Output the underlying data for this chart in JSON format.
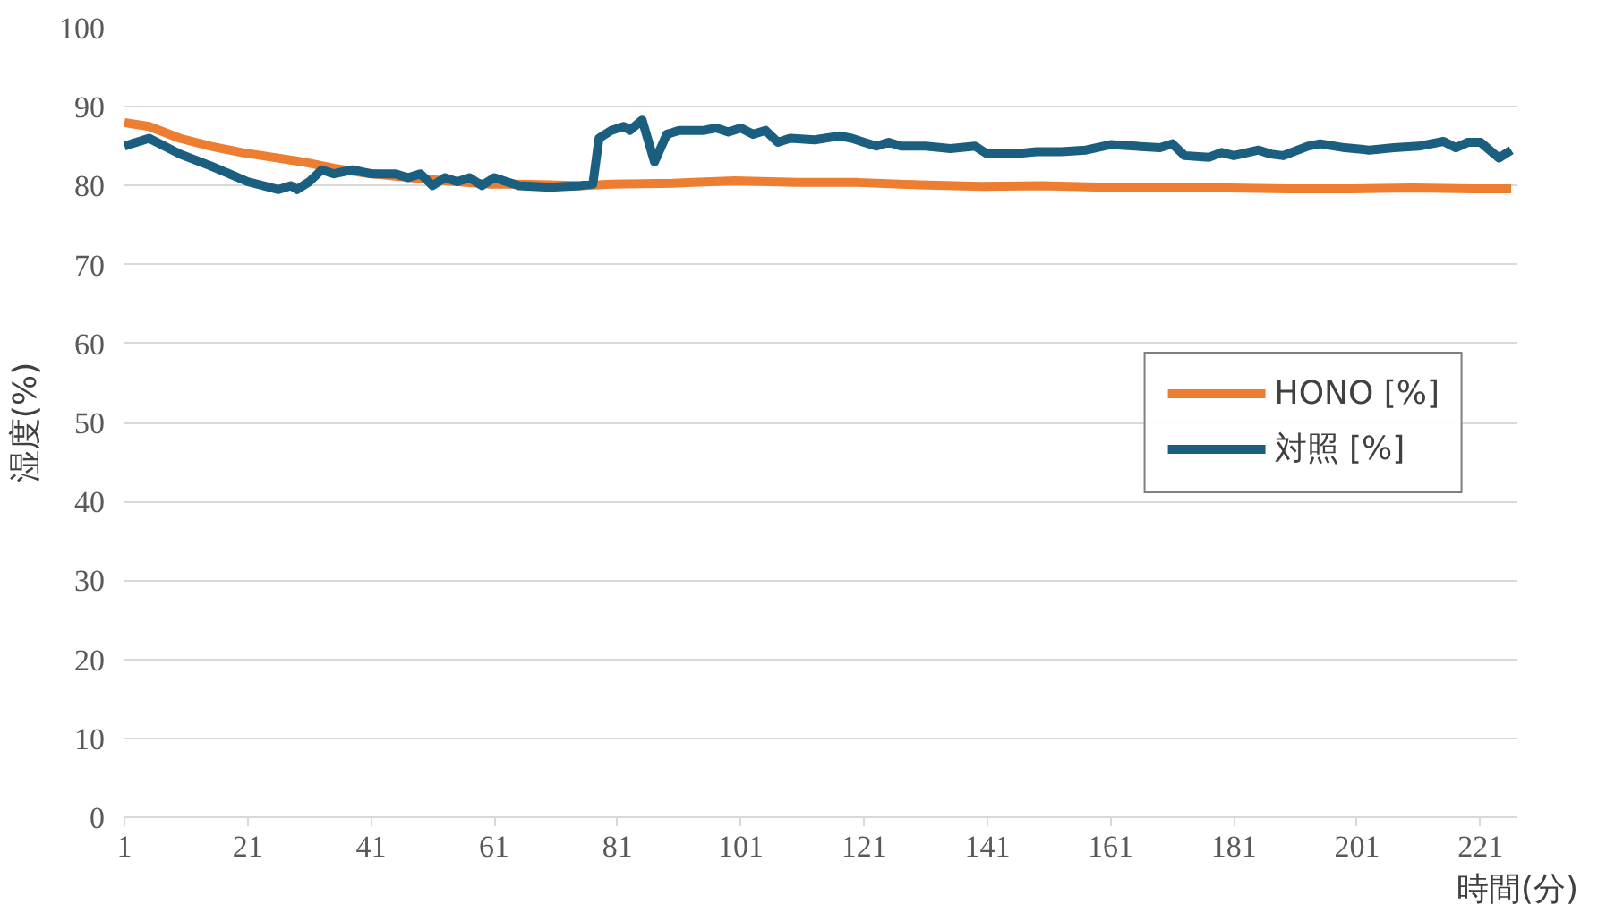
{
  "chart_data": {
    "type": "line",
    "xlabel": "時間(分)",
    "ylabel": "湿度(%)",
    "xlim": [
      1,
      227
    ],
    "xticks": [
      1,
      21,
      41,
      61,
      81,
      101,
      121,
      141,
      161,
      181,
      201,
      221
    ],
    "ylim": [
      0,
      100
    ],
    "yticks": [
      0,
      10,
      20,
      30,
      40,
      50,
      60,
      70,
      80,
      90,
      100
    ],
    "grid": "y",
    "legend": "right",
    "marker": "none",
    "line_style": "solid",
    "series": [
      {
        "name": "HONO [%]",
        "color": "#ed7d31",
        "x": [
          1,
          5,
          10,
          15,
          20,
          25,
          30,
          35,
          40,
          45,
          50,
          55,
          60,
          65,
          70,
          75,
          80,
          90,
          100,
          110,
          120,
          130,
          140,
          150,
          160,
          170,
          180,
          190,
          200,
          210,
          220,
          226
        ],
        "values": [
          88,
          87.5,
          86,
          85,
          84.2,
          83.6,
          83,
          82.2,
          81.6,
          81.2,
          80.8,
          80.5,
          80.2,
          80.2,
          80.1,
          80,
          80.2,
          80.3,
          80.6,
          80.4,
          80.4,
          80.1,
          79.9,
          80,
          79.8,
          79.8,
          79.7,
          79.6,
          79.6,
          79.7,
          79.6,
          79.6
        ]
      },
      {
        "name": "対照 [%]",
        "color": "#1a5e80",
        "x": [
          1,
          5,
          10,
          15,
          21,
          26,
          28,
          29,
          31,
          33,
          35,
          38,
          41,
          45,
          47,
          49,
          51,
          53,
          55,
          57,
          59,
          61,
          63,
          65,
          70,
          75,
          77,
          78,
          80,
          82,
          83,
          85,
          87,
          89,
          91,
          95,
          97,
          99,
          101,
          103,
          105,
          107,
          109,
          113,
          117,
          119,
          121,
          123,
          125,
          127,
          131,
          135,
          139,
          141,
          145,
          149,
          153,
          157,
          161,
          165,
          169,
          171,
          173,
          177,
          179,
          181,
          185,
          187,
          189,
          193,
          195,
          199,
          203,
          207,
          211,
          215,
          217,
          219,
          221,
          224,
          226
        ],
        "values": [
          85,
          86,
          84,
          82.5,
          80.5,
          79.5,
          80,
          79.5,
          80.5,
          82,
          81.5,
          82,
          81.5,
          81.5,
          81,
          81.5,
          80,
          81,
          80.5,
          81,
          80,
          81,
          80.5,
          80,
          79.8,
          80,
          80.2,
          86,
          87,
          87.5,
          87,
          88.3,
          83,
          86.5,
          87,
          87,
          87.3,
          86.8,
          87.3,
          86.5,
          87,
          85.5,
          86,
          85.8,
          86.3,
          86,
          85.5,
          85,
          85.5,
          85,
          85,
          84.7,
          85,
          84,
          84,
          84.3,
          84.3,
          84.5,
          85.2,
          85,
          84.8,
          85.3,
          83.8,
          83.6,
          84.2,
          83.8,
          84.5,
          84,
          83.8,
          85,
          85.3,
          84.8,
          84.5,
          84.8,
          85,
          85.6,
          84.8,
          85.5,
          85.5,
          83.5,
          84.5
        ]
      }
    ]
  }
}
